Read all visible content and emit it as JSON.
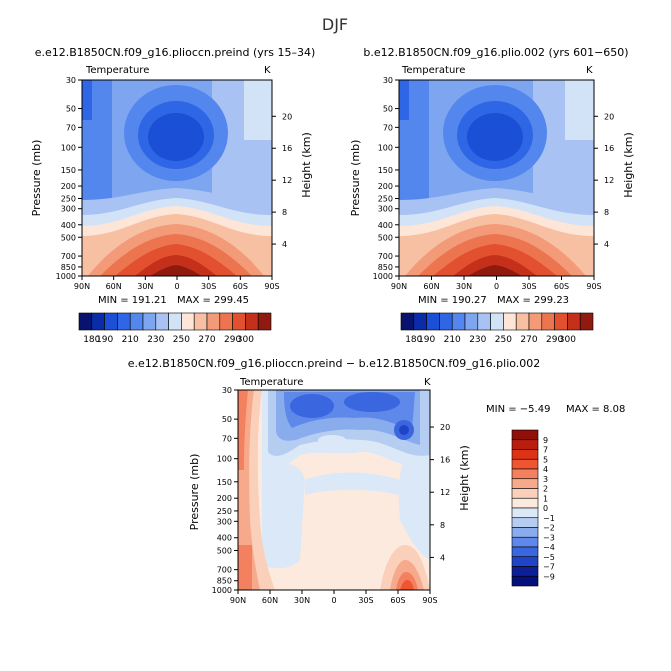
{
  "page_title": "DJF",
  "chart_data": [
    {
      "type": "heatmap",
      "title": "e.e12.B1850CN.f09_g16.plioccn.preind (yrs 15–34)",
      "variable": "Temperature",
      "units": "K",
      "xlabel": "",
      "ylabel": "Pressure (mb)",
      "y2label": "Height (km)",
      "x_ticks": [
        "90N",
        "60N",
        "30N",
        "0",
        "30S",
        "60S",
        "90S"
      ],
      "y_ticks": [
        "30",
        "50",
        "70",
        "100",
        "150",
        "200",
        "250",
        "300",
        "400",
        "500",
        "700",
        "850",
        "1000"
      ],
      "y2_ticks": [
        "20",
        "16",
        "12",
        "8",
        "4"
      ],
      "ylim": [
        1000,
        30
      ],
      "min_label": "MIN = 191.21",
      "max_label": "MAX = 299.45",
      "min": 191.21,
      "max": 299.45,
      "colorbar_levels": [
        180,
        190,
        200,
        210,
        220,
        230,
        240,
        250,
        260,
        270,
        280,
        290,
        300
      ],
      "colorbar_labels": [
        "180",
        "190",
        "210",
        "230",
        "250",
        "270",
        "290",
        "300"
      ]
    },
    {
      "type": "heatmap",
      "title": "b.e12.B1850CN.f09_g16.plio.002 (yrs 601−650)",
      "variable": "Temperature",
      "units": "K",
      "xlabel": "",
      "ylabel": "Pressure (mb)",
      "y2label": "Height (km)",
      "x_ticks": [
        "90N",
        "60N",
        "30N",
        "0",
        "30S",
        "60S",
        "90S"
      ],
      "y_ticks": [
        "30",
        "50",
        "70",
        "100",
        "150",
        "200",
        "250",
        "300",
        "400",
        "500",
        "700",
        "850",
        "1000"
      ],
      "y2_ticks": [
        "20",
        "16",
        "12",
        "8",
        "4"
      ],
      "ylim": [
        1000,
        30
      ],
      "min_label": "MIN = 190.27",
      "max_label": "MAX = 299.23",
      "min": 190.27,
      "max": 299.23,
      "colorbar_levels": [
        180,
        190,
        200,
        210,
        220,
        230,
        240,
        250,
        260,
        270,
        280,
        290,
        300
      ],
      "colorbar_labels": [
        "180",
        "190",
        "210",
        "230",
        "250",
        "270",
        "290",
        "300"
      ]
    },
    {
      "type": "heatmap",
      "title": "e.e12.B1850CN.f09_g16.plioccn.preind − b.e12.B1850CN.f09_g16.plio.002",
      "variable": "Temperature",
      "units": "K",
      "xlabel": "",
      "ylabel": "Pressure (mb)",
      "y2label": "Height (km)",
      "x_ticks": [
        "90N",
        "60N",
        "30N",
        "0",
        "30S",
        "60S",
        "90S"
      ],
      "y_ticks": [
        "30",
        "50",
        "70",
        "100",
        "150",
        "200",
        "250",
        "300",
        "400",
        "500",
        "700",
        "850",
        "1000"
      ],
      "y2_ticks": [
        "20",
        "16",
        "12",
        "8",
        "4"
      ],
      "ylim": [
        1000,
        30
      ],
      "min_label": "MIN = −5.49",
      "max_label": "MAX = 8.08",
      "min": -5.49,
      "max": 8.08,
      "colorbar_labels": [
        "9",
        "7",
        "5",
        "4",
        "3",
        "2",
        "1",
        "0",
        "−1",
        "−2",
        "−3",
        "−4",
        "−5",
        "−7",
        "−9"
      ]
    }
  ],
  "colors": {
    "abs_palette": [
      "#08136e",
      "#0b2ca8",
      "#1a4fd6",
      "#2f66e6",
      "#5487ee",
      "#7ea5f0",
      "#a8c3f3",
      "#d2e3f8",
      "#fde6d8",
      "#f8c0a3",
      "#f39a78",
      "#ec7550",
      "#e2502f",
      "#c4301a",
      "#8f1a10"
    ],
    "diff_palette": [
      "#8f1008",
      "#b81d0e",
      "#dc3215",
      "#ee5530",
      "#f3805e",
      "#f7a98b",
      "#fbd0ba",
      "#fdeadf",
      "#dbe8f8",
      "#b6cdf2",
      "#89aced",
      "#5e88ea",
      "#3a67df",
      "#1f45c6",
      "#0c1f97",
      "#06107a"
    ]
  }
}
